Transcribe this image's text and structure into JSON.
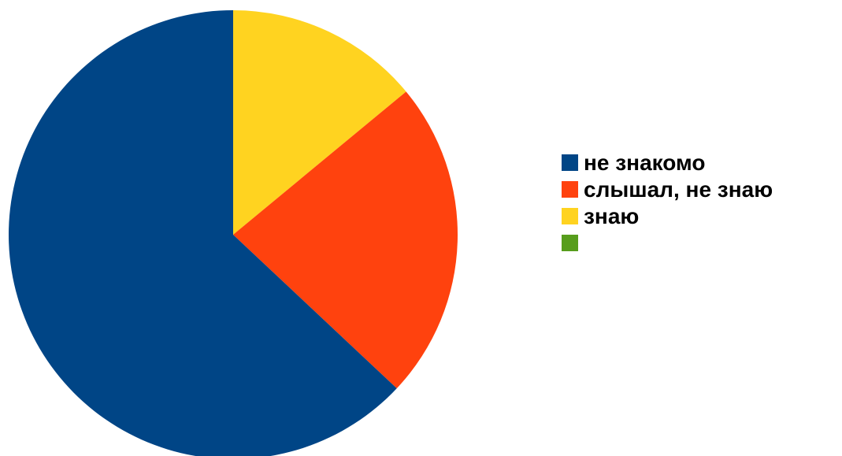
{
  "chart_data": {
    "type": "pie",
    "title": "",
    "start_angle": "top",
    "direction": "clockwise",
    "legend_position": "right",
    "slices": [
      {
        "label": "знаю",
        "value": 14,
        "color": "#ffd320"
      },
      {
        "label": "слышал, не знаю",
        "value": 23,
        "color": "#ff420e"
      },
      {
        "label": "не знакомо",
        "value": 63,
        "color": "#004586"
      },
      {
        "label": "",
        "value": 0,
        "color": "#579d1c"
      }
    ],
    "legend": [
      {
        "label": "не знакомо",
        "color": "#004586"
      },
      {
        "label": "слышал, не знаю",
        "color": "#ff420e"
      },
      {
        "label": "знаю",
        "color": "#ffd320"
      },
      {
        "label": "",
        "color": "#579d1c"
      }
    ]
  }
}
